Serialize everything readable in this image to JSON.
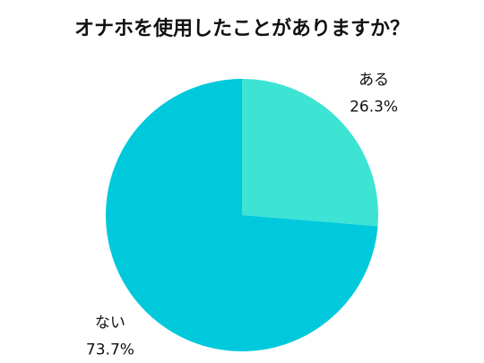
{
  "chart_data": {
    "type": "pie",
    "title": "オナホを使用したことがありますか？",
    "categories": [
      "ある",
      "ない"
    ],
    "values": [
      26.3,
      73.7
    ],
    "value_labels": [
      "26.3%",
      "73.7%"
    ],
    "colors": [
      "#3de3d3",
      "#00c9dc"
    ]
  }
}
